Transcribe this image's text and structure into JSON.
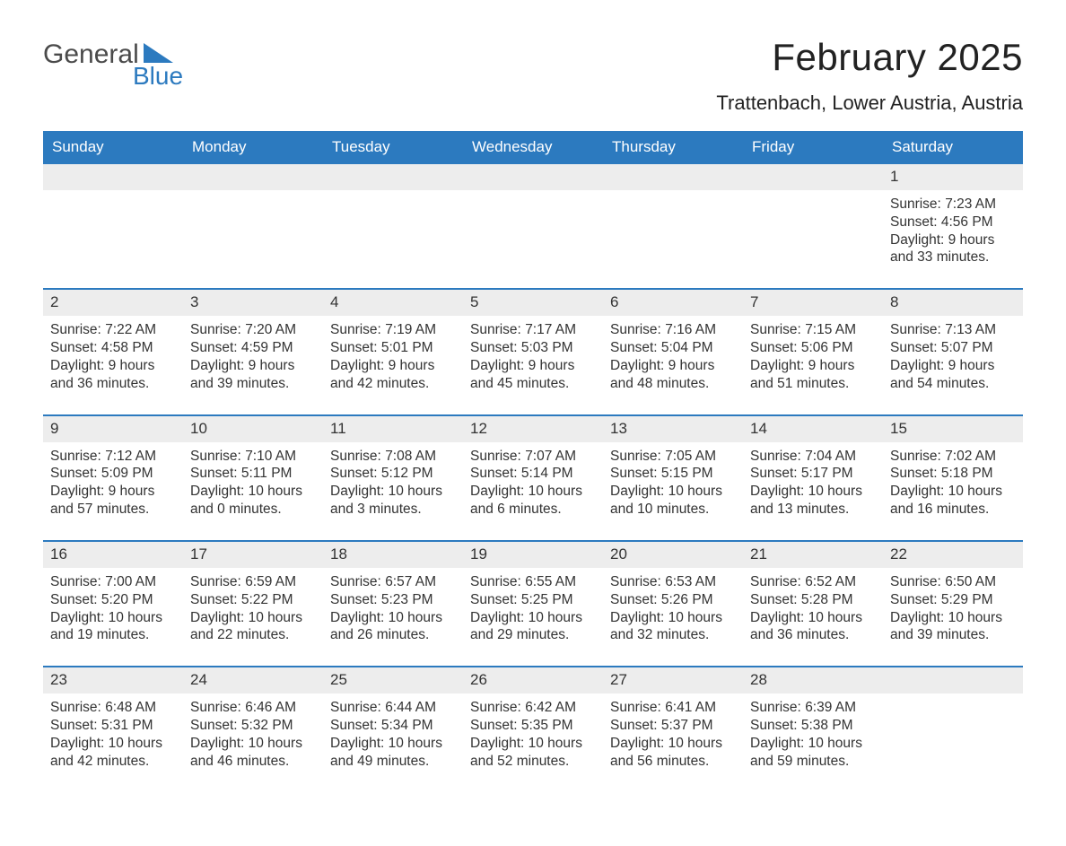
{
  "brand": {
    "word1": "General",
    "word2": "Blue",
    "word1_color": "#4a4a4a",
    "word2_color": "#2c7abf",
    "flag_color": "#2c7abf"
  },
  "header": {
    "month_title": "February 2025",
    "location": "Trattenbach, Lower Austria, Austria"
  },
  "theme": {
    "header_bg": "#2c7abf",
    "header_fg": "#ffffff",
    "row_rule": "#2c7abf",
    "day_num_bg": "#ededed",
    "text": "#222222",
    "label_sunrise": "Sunrise:",
    "label_sunset": "Sunset:",
    "label_daylight": "Daylight:"
  },
  "days_of_week": [
    "Sunday",
    "Monday",
    "Tuesday",
    "Wednesday",
    "Thursday",
    "Friday",
    "Saturday"
  ],
  "weeks": [
    [
      {
        "empty": true
      },
      {
        "empty": true
      },
      {
        "empty": true
      },
      {
        "empty": true
      },
      {
        "empty": true
      },
      {
        "empty": true
      },
      {
        "n": 1,
        "sunrise": "7:23 AM",
        "sunset": "4:56 PM",
        "daylight": "9 hours and 33 minutes."
      }
    ],
    [
      {
        "n": 2,
        "sunrise": "7:22 AM",
        "sunset": "4:58 PM",
        "daylight": "9 hours and 36 minutes."
      },
      {
        "n": 3,
        "sunrise": "7:20 AM",
        "sunset": "4:59 PM",
        "daylight": "9 hours and 39 minutes."
      },
      {
        "n": 4,
        "sunrise": "7:19 AM",
        "sunset": "5:01 PM",
        "daylight": "9 hours and 42 minutes."
      },
      {
        "n": 5,
        "sunrise": "7:17 AM",
        "sunset": "5:03 PM",
        "daylight": "9 hours and 45 minutes."
      },
      {
        "n": 6,
        "sunrise": "7:16 AM",
        "sunset": "5:04 PM",
        "daylight": "9 hours and 48 minutes."
      },
      {
        "n": 7,
        "sunrise": "7:15 AM",
        "sunset": "5:06 PM",
        "daylight": "9 hours and 51 minutes."
      },
      {
        "n": 8,
        "sunrise": "7:13 AM",
        "sunset": "5:07 PM",
        "daylight": "9 hours and 54 minutes."
      }
    ],
    [
      {
        "n": 9,
        "sunrise": "7:12 AM",
        "sunset": "5:09 PM",
        "daylight": "9 hours and 57 minutes."
      },
      {
        "n": 10,
        "sunrise": "7:10 AM",
        "sunset": "5:11 PM",
        "daylight": "10 hours and 0 minutes."
      },
      {
        "n": 11,
        "sunrise": "7:08 AM",
        "sunset": "5:12 PM",
        "daylight": "10 hours and 3 minutes."
      },
      {
        "n": 12,
        "sunrise": "7:07 AM",
        "sunset": "5:14 PM",
        "daylight": "10 hours and 6 minutes."
      },
      {
        "n": 13,
        "sunrise": "7:05 AM",
        "sunset": "5:15 PM",
        "daylight": "10 hours and 10 minutes."
      },
      {
        "n": 14,
        "sunrise": "7:04 AM",
        "sunset": "5:17 PM",
        "daylight": "10 hours and 13 minutes."
      },
      {
        "n": 15,
        "sunrise": "7:02 AM",
        "sunset": "5:18 PM",
        "daylight": "10 hours and 16 minutes."
      }
    ],
    [
      {
        "n": 16,
        "sunrise": "7:00 AM",
        "sunset": "5:20 PM",
        "daylight": "10 hours and 19 minutes."
      },
      {
        "n": 17,
        "sunrise": "6:59 AM",
        "sunset": "5:22 PM",
        "daylight": "10 hours and 22 minutes."
      },
      {
        "n": 18,
        "sunrise": "6:57 AM",
        "sunset": "5:23 PM",
        "daylight": "10 hours and 26 minutes."
      },
      {
        "n": 19,
        "sunrise": "6:55 AM",
        "sunset": "5:25 PM",
        "daylight": "10 hours and 29 minutes."
      },
      {
        "n": 20,
        "sunrise": "6:53 AM",
        "sunset": "5:26 PM",
        "daylight": "10 hours and 32 minutes."
      },
      {
        "n": 21,
        "sunrise": "6:52 AM",
        "sunset": "5:28 PM",
        "daylight": "10 hours and 36 minutes."
      },
      {
        "n": 22,
        "sunrise": "6:50 AM",
        "sunset": "5:29 PM",
        "daylight": "10 hours and 39 minutes."
      }
    ],
    [
      {
        "n": 23,
        "sunrise": "6:48 AM",
        "sunset": "5:31 PM",
        "daylight": "10 hours and 42 minutes."
      },
      {
        "n": 24,
        "sunrise": "6:46 AM",
        "sunset": "5:32 PM",
        "daylight": "10 hours and 46 minutes."
      },
      {
        "n": 25,
        "sunrise": "6:44 AM",
        "sunset": "5:34 PM",
        "daylight": "10 hours and 49 minutes."
      },
      {
        "n": 26,
        "sunrise": "6:42 AM",
        "sunset": "5:35 PM",
        "daylight": "10 hours and 52 minutes."
      },
      {
        "n": 27,
        "sunrise": "6:41 AM",
        "sunset": "5:37 PM",
        "daylight": "10 hours and 56 minutes."
      },
      {
        "n": 28,
        "sunrise": "6:39 AM",
        "sunset": "5:38 PM",
        "daylight": "10 hours and 59 minutes."
      },
      {
        "empty": true
      }
    ]
  ]
}
